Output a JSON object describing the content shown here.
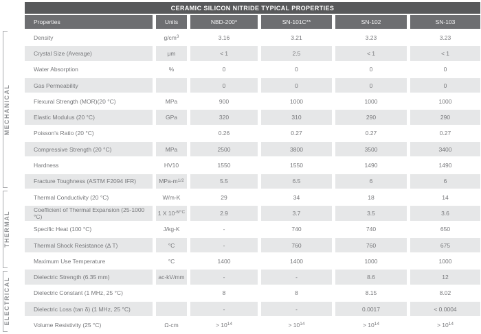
{
  "title": "CERAMIC SILICON NITRIDE TYPICAL PROPERTIES",
  "columns": [
    "Properties",
    "Units",
    "NBD-200*",
    "SN-101C**",
    "SN-102",
    "SN-103"
  ],
  "groups": [
    {
      "label": "MECHANICAL",
      "row_start": 0,
      "row_end": 9
    },
    {
      "label": "THERMAL",
      "row_start": 10,
      "row_end": 14
    },
    {
      "label": "ELECTRICAL",
      "row_start": 15,
      "row_end": 18
    }
  ],
  "rows": [
    {
      "property": "Density",
      "units": "g/cm^{3}",
      "values": [
        "3.16",
        "3.21",
        "3.23",
        "3.23"
      ]
    },
    {
      "property": "Crystal Size (Average)",
      "units": "μm",
      "values": [
        "< 1",
        "2.5",
        "< 1",
        "< 1"
      ]
    },
    {
      "property": "Water Absorption",
      "units": "%",
      "values": [
        "0",
        "0",
        "0",
        "0"
      ]
    },
    {
      "property": "Gas Permeability",
      "units": "",
      "values": [
        "0",
        "0",
        "0",
        "0"
      ]
    },
    {
      "property": "Flexural Strength (MOR)(20 °C)",
      "units": "MPa",
      "values": [
        "900",
        "1000",
        "1000",
        "1000"
      ]
    },
    {
      "property": "Elastic Modulus (20 °C)",
      "units": "GPa",
      "values": [
        "320",
        "310",
        "290",
        "290"
      ]
    },
    {
      "property": "Poisson's Ratio (20 °C)",
      "units": "",
      "values": [
        "0.26",
        "0.27",
        "0.27",
        "0.27"
      ]
    },
    {
      "property": "Compressive Strength (20 °C)",
      "units": "MPa",
      "values": [
        "2500",
        "3800",
        "3500",
        "3400"
      ]
    },
    {
      "property": "Hardness",
      "units": "HV10",
      "values": [
        "1550",
        "1550",
        "1490",
        "1490"
      ]
    },
    {
      "property": "Fracture Toughness (ASTM F2094 IFR)",
      "units": "MPa-m^{1/2}",
      "values": [
        "5.5",
        "6.5",
        "6",
        "6"
      ]
    },
    {
      "property": "Thermal Conductivity (20 °C)",
      "units": "W/m-K",
      "values": [
        "29",
        "34",
        "18",
        "14"
      ]
    },
    {
      "property": "Coefficient of Thermal Expansion (25-1000 °C)",
      "units": "1 X 10^{-6/°C}",
      "values": [
        "2.9",
        "3.7",
        "3.5",
        "3.6"
      ]
    },
    {
      "property": "Specific Heat (100 °C)",
      "units": "J/kg-K",
      "values": [
        "-",
        "740",
        "740",
        "650"
      ]
    },
    {
      "property": "Thermal Shock Resistance (Δ T)",
      "units": "°C",
      "values": [
        "-",
        "760",
        "760",
        "675"
      ]
    },
    {
      "property": "Maximum Use Temperature",
      "units": "°C",
      "values": [
        "1400",
        "1400",
        "1000",
        "1000"
      ]
    },
    {
      "property": "Dielectric Strength (6.35 mm)",
      "units": "ac-kV/mm",
      "values": [
        "-",
        "-",
        "8.6",
        "12"
      ]
    },
    {
      "property": "Dielectric Constant (1 MHz, 25 °C)",
      "units": "",
      "values": [
        "8",
        "8",
        "8.15",
        "8.02"
      ]
    },
    {
      "property": "Dielectric Loss (tan δ) (1 MHz, 25 °C)",
      "units": "",
      "values": [
        "-",
        "-",
        "0.0017",
        "< 0.0004"
      ]
    },
    {
      "property": "Volume Resistivity (25 °C)",
      "units": "Ω-cm",
      "values": [
        "> 10^{14}",
        "> 10^{14}",
        "> 10^{14}",
        "> 10^{14}"
      ]
    }
  ],
  "colors": {
    "title_bar": "#58595b",
    "header_row": "#6d6e71",
    "row_shade": "#e6e7e8",
    "cell_text": "#76777a",
    "bracket": "#a7a9ac",
    "group_label": "#8f9194"
  }
}
